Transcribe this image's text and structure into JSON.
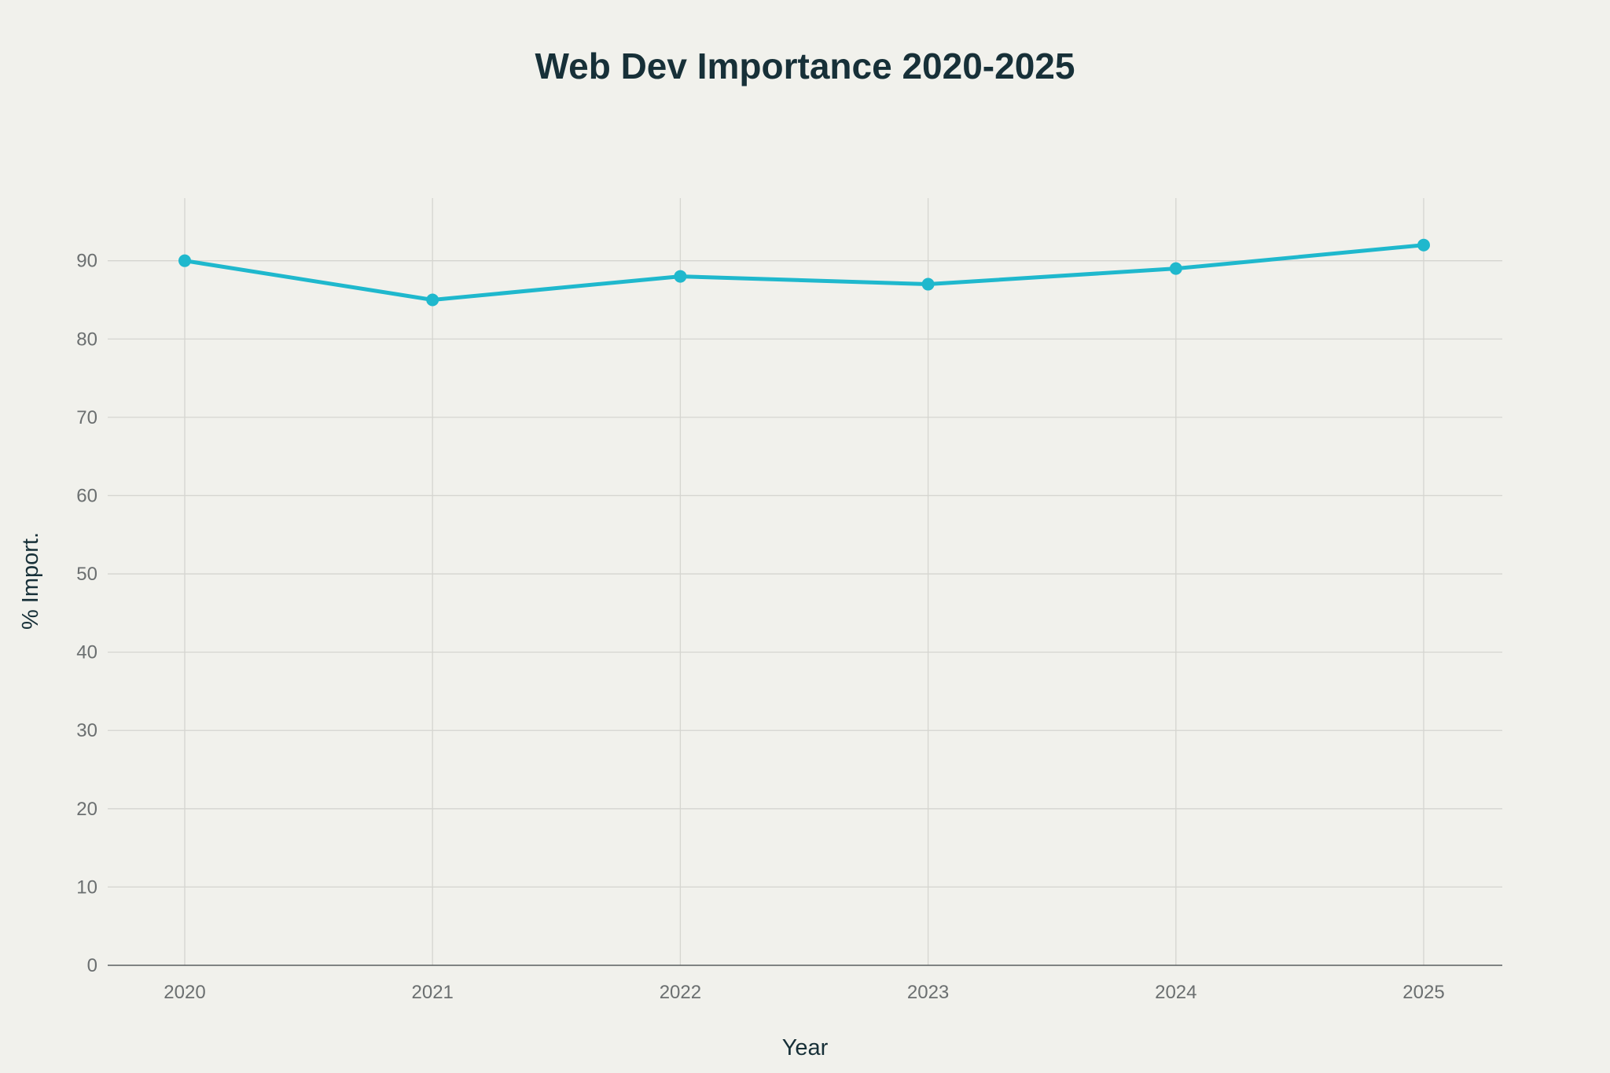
{
  "chart_data": {
    "type": "line",
    "title": "Web Dev Importance 2020-2025",
    "xlabel": "Year",
    "ylabel": "% Import.",
    "categories": [
      "2020",
      "2021",
      "2022",
      "2023",
      "2024",
      "2025"
    ],
    "series": [
      {
        "values": [
          90,
          85,
          88,
          87,
          89,
          92
        ]
      }
    ],
    "yticks": [
      0,
      10,
      20,
      30,
      40,
      50,
      60,
      70,
      80,
      90
    ],
    "ylim": [
      0,
      98
    ],
    "grid": true,
    "markers": true,
    "colors": {
      "line": "#1fb8cd",
      "background": "#f1f1ec",
      "grid": "#d5d5d0",
      "axis": "#5a5f60",
      "title": "#173038"
    }
  }
}
